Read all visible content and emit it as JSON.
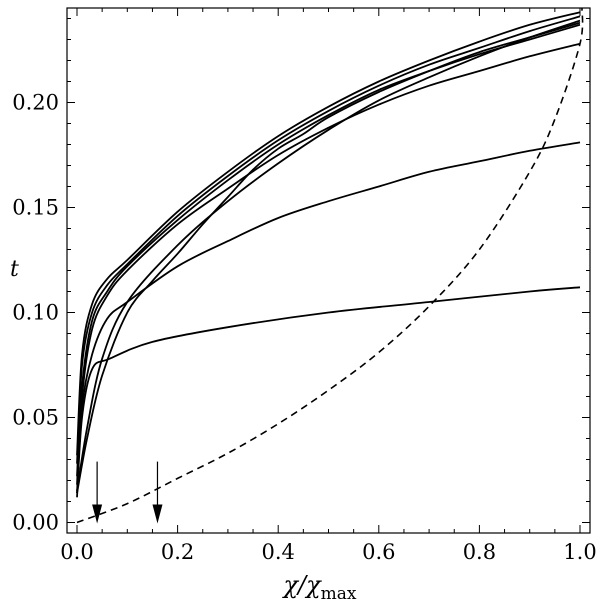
{
  "chart_data": {
    "type": "line",
    "xlabel": {
      "main": "χ/χ",
      "subscript": "max"
    },
    "ylabel": "t",
    "xlim": [
      0.0,
      1.0
    ],
    "ylim": [
      -0.005,
      0.245
    ],
    "x_ticks": [
      "0.0",
      "0.2",
      "0.4",
      "0.6",
      "0.8",
      "1.0"
    ],
    "x_tick_values": [
      0.0,
      0.2,
      0.4,
      0.6,
      0.8,
      1.0
    ],
    "y_ticks": [
      "0.00",
      "0.05",
      "0.10",
      "0.15",
      "0.20"
    ],
    "y_tick_values": [
      0.0,
      0.05,
      0.1,
      0.15,
      0.2
    ],
    "grid": false,
    "series": [
      {
        "style": "solid",
        "points": [
          [
            0.0,
            0.012
          ],
          [
            0.01,
            0.05
          ],
          [
            0.03,
            0.073
          ],
          [
            0.065,
            0.078
          ],
          [
            0.15,
            0.086
          ],
          [
            0.3,
            0.093
          ],
          [
            0.5,
            0.1
          ],
          [
            0.7,
            0.105
          ],
          [
            0.9,
            0.11
          ],
          [
            1.0,
            0.112
          ]
        ]
      },
      {
        "style": "solid",
        "points": [
          [
            0.0,
            0.014
          ],
          [
            0.01,
            0.055
          ],
          [
            0.03,
            0.08
          ],
          [
            0.06,
            0.097
          ],
          [
            0.1,
            0.105
          ],
          [
            0.2,
            0.122
          ],
          [
            0.3,
            0.134
          ],
          [
            0.4,
            0.145
          ],
          [
            0.5,
            0.153
          ],
          [
            0.6,
            0.16
          ],
          [
            0.7,
            0.167
          ],
          [
            0.8,
            0.172
          ],
          [
            0.9,
            0.177
          ],
          [
            1.0,
            0.181
          ]
        ]
      },
      {
        "style": "solid",
        "points": [
          [
            0.0,
            0.018
          ],
          [
            0.01,
            0.06
          ],
          [
            0.03,
            0.092
          ],
          [
            0.06,
            0.108
          ],
          [
            0.1,
            0.12
          ],
          [
            0.2,
            0.142
          ],
          [
            0.3,
            0.159
          ],
          [
            0.4,
            0.175
          ],
          [
            0.5,
            0.188
          ],
          [
            0.6,
            0.199
          ],
          [
            0.7,
            0.208
          ],
          [
            0.8,
            0.215
          ],
          [
            0.9,
            0.222
          ],
          [
            1.0,
            0.228
          ]
        ]
      },
      {
        "style": "solid",
        "points": [
          [
            0.0,
            0.022
          ],
          [
            0.01,
            0.065
          ],
          [
            0.03,
            0.096
          ],
          [
            0.06,
            0.11
          ],
          [
            0.1,
            0.122
          ],
          [
            0.2,
            0.144
          ],
          [
            0.3,
            0.163
          ],
          [
            0.4,
            0.18
          ],
          [
            0.5,
            0.194
          ],
          [
            0.6,
            0.206
          ],
          [
            0.7,
            0.215
          ],
          [
            0.8,
            0.223
          ],
          [
            0.9,
            0.23
          ],
          [
            1.0,
            0.237
          ]
        ]
      },
      {
        "style": "solid",
        "points": [
          [
            0.0,
            0.014
          ],
          [
            0.02,
            0.04
          ],
          [
            0.05,
            0.07
          ],
          [
            0.1,
            0.1
          ],
          [
            0.15,
            0.115
          ],
          [
            0.2,
            0.128
          ],
          [
            0.25,
            0.142
          ],
          [
            0.3,
            0.155
          ],
          [
            0.35,
            0.168
          ],
          [
            0.4,
            0.178
          ],
          [
            0.45,
            0.185
          ],
          [
            0.5,
            0.193
          ],
          [
            0.6,
            0.205
          ],
          [
            0.7,
            0.215
          ],
          [
            0.8,
            0.224
          ],
          [
            0.9,
            0.231
          ],
          [
            1.0,
            0.238
          ]
        ]
      },
      {
        "style": "solid",
        "points": [
          [
            0.0,
            0.015
          ],
          [
            0.02,
            0.045
          ],
          [
            0.05,
            0.078
          ],
          [
            0.1,
            0.105
          ],
          [
            0.2,
            0.132
          ],
          [
            0.3,
            0.153
          ],
          [
            0.4,
            0.171
          ],
          [
            0.5,
            0.187
          ],
          [
            0.6,
            0.201
          ],
          [
            0.7,
            0.212
          ],
          [
            0.8,
            0.222
          ],
          [
            0.9,
            0.231
          ],
          [
            1.0,
            0.239
          ]
        ]
      },
      {
        "style": "solid",
        "points": [
          [
            0.0,
            0.028
          ],
          [
            0.01,
            0.075
          ],
          [
            0.03,
            0.1
          ],
          [
            0.06,
            0.113
          ],
          [
            0.1,
            0.123
          ],
          [
            0.2,
            0.146
          ],
          [
            0.3,
            0.165
          ],
          [
            0.4,
            0.182
          ],
          [
            0.5,
            0.196
          ],
          [
            0.6,
            0.208
          ],
          [
            0.7,
            0.218
          ],
          [
            0.8,
            0.226
          ],
          [
            0.9,
            0.234
          ],
          [
            1.0,
            0.241
          ]
        ]
      },
      {
        "style": "solid",
        "points": [
          [
            0.0,
            0.032
          ],
          [
            0.01,
            0.08
          ],
          [
            0.03,
            0.104
          ],
          [
            0.06,
            0.116
          ],
          [
            0.1,
            0.125
          ],
          [
            0.2,
            0.148
          ],
          [
            0.3,
            0.167
          ],
          [
            0.4,
            0.184
          ],
          [
            0.5,
            0.198
          ],
          [
            0.6,
            0.21
          ],
          [
            0.7,
            0.22
          ],
          [
            0.8,
            0.229
          ],
          [
            0.9,
            0.237
          ],
          [
            1.0,
            0.243
          ]
        ]
      },
      {
        "style": "dashed",
        "points": [
          [
            0.0,
            0.0
          ],
          [
            0.1,
            0.009
          ],
          [
            0.2,
            0.021
          ],
          [
            0.3,
            0.033
          ],
          [
            0.4,
            0.047
          ],
          [
            0.5,
            0.063
          ],
          [
            0.6,
            0.081
          ],
          [
            0.7,
            0.103
          ],
          [
            0.8,
            0.13
          ],
          [
            0.9,
            0.167
          ],
          [
            0.95,
            0.192
          ],
          [
            1.0,
            0.228
          ],
          [
            1.004,
            0.245
          ]
        ]
      }
    ],
    "arrows": [
      {
        "x": 0.04,
        "y_from": 0.029,
        "y_to": 0.0
      },
      {
        "x": 0.16,
        "y_from": 0.029,
        "y_to": 0.0
      }
    ]
  }
}
